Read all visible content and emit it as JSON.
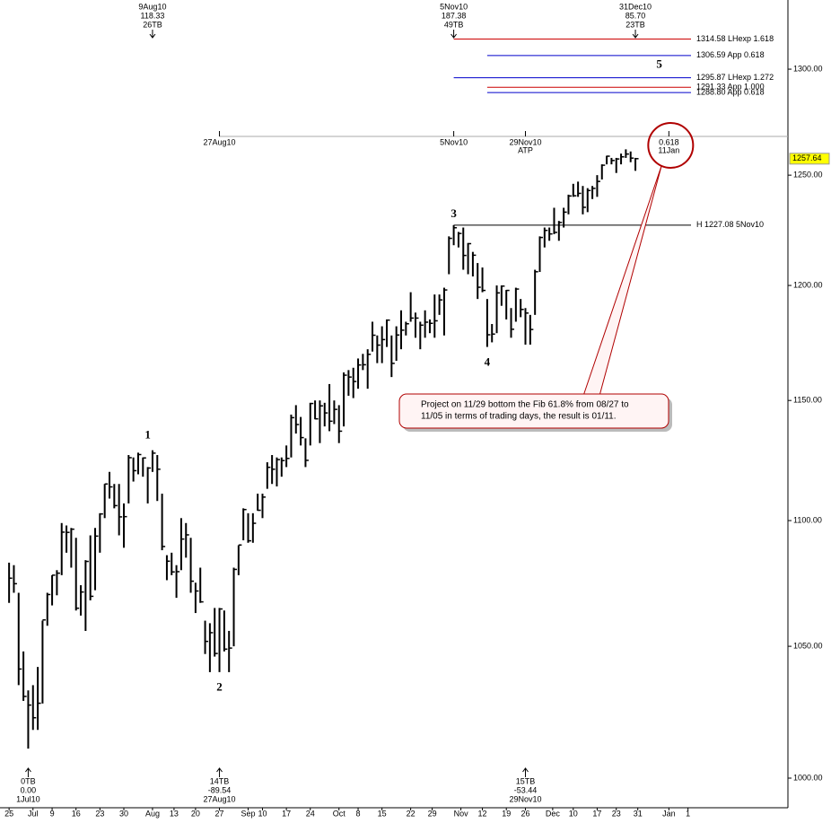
{
  "chart_data": {
    "type": "ohlc",
    "log_scale": true,
    "color": "#000000",
    "categories": [
      null,
      null,
      null,
      null,
      null,
      null,
      null,
      null,
      null,
      null,
      null,
      null,
      null,
      null,
      null,
      null,
      null,
      null,
      null,
      null,
      null,
      null,
      null,
      null,
      null,
      null,
      null,
      null,
      null,
      null,
      null,
      null,
      null,
      null,
      null,
      null,
      null,
      null,
      null,
      null,
      null,
      null,
      null,
      null,
      null,
      null,
      null,
      null,
      null,
      null,
      null,
      null,
      null,
      null,
      null,
      null,
      null,
      null,
      null,
      null,
      null,
      null,
      null,
      null,
      null,
      null,
      null,
      null,
      null,
      null,
      null,
      null,
      null,
      null,
      null,
      null,
      null,
      null,
      null,
      null,
      null,
      null,
      null,
      null,
      null,
      null,
      null,
      null,
      null,
      null,
      null,
      null,
      null,
      null,
      null,
      null,
      null,
      null,
      null,
      null,
      null,
      null,
      null,
      null,
      null,
      null,
      null,
      null,
      null,
      null,
      null,
      null,
      null,
      null,
      null,
      null,
      null,
      null,
      null,
      null,
      null,
      null,
      null,
      null,
      null,
      null,
      null,
      null,
      null,
      null,
      null,
      null
    ],
    "high": [
      1083,
      1082,
      1071,
      1048,
      1033,
      1035,
      1042,
      1060,
      1071,
      1078,
      1080,
      1099,
      1098,
      1097,
      1093,
      1074,
      1084,
      1094,
      1097,
      1103,
      1115,
      1120,
      1115,
      1115,
      1107,
      1127,
      1126,
      1128,
      1126,
      1122,
      1129,
      1127,
      1111,
      1086,
      1087,
      1082,
      1101,
      1099,
      1093,
      1075,
      1081,
      1060,
      1059,
      1065,
      1065,
      1064,
      1056,
      1081,
      1090,
      1105,
      1103,
      1103,
      1111,
      1111,
      1124,
      1127,
      1126,
      1126,
      1131,
      1144,
      1148,
      1143,
      1134,
      1149,
      1150,
      1150,
      1149,
      1157,
      1150,
      1148,
      1162,
      1163,
      1164,
      1168,
      1170,
      1172,
      1184,
      1178,
      1182,
      1185,
      1178,
      1182,
      1189,
      1184,
      1197,
      1188,
      1184,
      1189,
      1185,
      1196,
      1196,
      1199,
      1222,
      1227.08,
      1224,
      1226,
      1219,
      1215,
      1210,
      1208,
      1194,
      1183,
      1200,
      1200,
      1198,
      1190,
      1199,
      1194,
      1190,
      1187,
      1207,
      1222,
      1226,
      1226,
      1235,
      1229,
      1235,
      1241,
      1246,
      1247,
      1245,
      1244,
      1245,
      1250,
      1255,
      1259,
      1258,
      1258,
      1260,
      1262,
      1261,
      1258
    ],
    "low": [
      1067,
      1071,
      1035,
      1029,
      1011,
      1018,
      1018,
      1028,
      1058,
      1066,
      1070,
      1078,
      1087,
      1081,
      1064,
      1062,
      1056,
      1068,
      1072,
      1087,
      1101,
      1109,
      1105,
      1094,
      1089,
      1107,
      1116,
      1119,
      1118,
      1107,
      1120,
      1108,
      1088,
      1076,
      1078,
      1069,
      1080,
      1085,
      1071,
      1063,
      1067,
      1047,
      1040,
      1046,
      1040,
      1048,
      1040,
      1050,
      1078,
      1092,
      1091,
      1091,
      1104,
      1101,
      1113,
      1115,
      1114,
      1118,
      1122,
      1126,
      1136,
      1131,
      1122,
      1131,
      1142,
      1132,
      1139,
      1137,
      1140,
      1132,
      1139,
      1152,
      1151,
      1155,
      1163,
      1155,
      1171,
      1166,
      1166,
      1173,
      1160,
      1167,
      1172,
      1178,
      1184,
      1177,
      1172,
      1177,
      1179,
      1177,
      1187,
      1178,
      1205,
      1218,
      1217,
      1207,
      1205,
      1204,
      1194,
      1197,
      1173,
      1175,
      1179,
      1191,
      1185,
      1177,
      1184,
      1186,
      1174,
      1174,
      1187,
      1206,
      1217,
      1220,
      1223,
      1220,
      1226,
      1232,
      1240,
      1240,
      1232,
      1233,
      1239,
      1240,
      1248,
      1255,
      1255,
      1251,
      1255,
      1258,
      1256,
      1252
    ],
    "close": [
      1076.8,
      1074.6,
      1041.2,
      1030.7,
      1027.4,
      1022.6,
      1028.1,
      1060.3,
      1070.3,
      1078,
      1078.8,
      1095.3,
      1095.2,
      1096.5,
      1064.9,
      1071.3,
      1083.5,
      1069.6,
      1093.7,
      1102.7,
      1115,
      1113.8,
      1106.1,
      1101.5,
      1101.6,
      1125.9,
      1120.5,
      1127.2,
      1125.8,
      1121.6,
      1127.8,
      1121.1,
      1089.5,
      1083.6,
      1079.3,
      1079.4,
      1092.5,
      1094.2,
      1075.6,
      1071.7,
      1067.4,
      1051.9,
      1055.3,
      1047.2,
      1064.6,
      1048.9,
      1049.3,
      1080.3,
      1090.1,
      1104.5,
      1091.8,
      1098.9,
      1104.2,
      1109.6,
      1121.9,
      1121.1,
      1125.1,
      1124.7,
      1125.6,
      1142.7,
      1139.8,
      1134.3,
      1124.8,
      1148.7,
      1142.2,
      1147.7,
      1144.7,
      1141.2,
      1146.2,
      1137,
      1160.8,
      1160,
      1158.1,
      1165.2,
      1165.3,
      1169.8,
      1178.1,
      1173.8,
      1176.2,
      1184.7,
      1165.9,
      1178.2,
      1180.3,
      1183.1,
      1185.6,
      1185.6,
      1182.5,
      1183.8,
      1183.3,
      1184.4,
      1193.6,
      1198,
      1221.1,
      1225.9,
      1223.3,
      1213.4,
      1218.7,
      1213.5,
      1199.2,
      1197.8,
      1178.3,
      1178.6,
      1196.7,
      1199.7,
      1197.8,
      1180.7,
      1198.4,
      1189.4,
      1187.8,
      1180.6,
      1206.1,
      1221.5,
      1224.7,
      1223.1,
      1223.8,
      1228.3,
      1233,
      1240.4,
      1240.5,
      1241.6,
      1235.2,
      1242.9,
      1243.9,
      1247.1,
      1254.6,
      1258.8,
      1256.8,
      1257.5,
      1258.5,
      1259.8,
      1257.9,
      1257.64
    ],
    "xlim": [
      -1.9,
      162.9
    ],
    "xticks": [
      {
        "value": 0,
        "label": "25"
      },
      {
        "value": 5,
        "label": "Jul"
      },
      {
        "value": 9,
        "label": "9"
      },
      {
        "value": 14,
        "label": "16"
      },
      {
        "value": 19,
        "label": "23"
      },
      {
        "value": 24,
        "label": "30"
      },
      {
        "value": 30,
        "label": "Aug"
      },
      {
        "value": 34.5,
        "label": "13"
      },
      {
        "value": 39,
        "label": "20"
      },
      {
        "value": 44,
        "label": "27"
      },
      {
        "value": 50,
        "label": "Sep"
      },
      {
        "value": 53,
        "label": "10"
      },
      {
        "value": 58,
        "label": "17"
      },
      {
        "value": 63,
        "label": "24"
      },
      {
        "value": 69,
        "label": "Oct"
      },
      {
        "value": 73,
        "label": "8"
      },
      {
        "value": 78,
        "label": "15"
      },
      {
        "value": 84,
        "label": "22"
      },
      {
        "value": 88.5,
        "label": "29"
      },
      {
        "value": 94.5,
        "label": "Nov"
      },
      {
        "value": 99,
        "label": "12"
      },
      {
        "value": 104,
        "label": "19"
      },
      {
        "value": 108,
        "label": "26"
      },
      {
        "value": 113.7,
        "label": "Dec"
      },
      {
        "value": 118,
        "label": "10"
      },
      {
        "value": 123,
        "label": "17"
      },
      {
        "value": 127,
        "label": "23"
      },
      {
        "value": 131.5,
        "label": "31"
      },
      {
        "value": 138,
        "label": "Jan"
      },
      {
        "value": 142,
        "label": "1"
      }
    ],
    "ylim": [
      989.1,
      1333.7
    ],
    "yticks": [
      {
        "value": 1000,
        "label": "1000.00"
      },
      {
        "value": 1050,
        "label": "1050.00"
      },
      {
        "value": 1100,
        "label": "1100.00"
      },
      {
        "value": 1150,
        "label": "1150.00"
      },
      {
        "value": 1200,
        "label": "1200.00"
      },
      {
        "value": 1250,
        "label": "1250.00"
      },
      {
        "value": 1300,
        "label": "1300.00"
      }
    ],
    "last_price": 1257.64,
    "top_markers": [
      {
        "x": 30,
        "lines": [
          "9Aug10",
          "118.33",
          "26TB"
        ]
      },
      {
        "x": 93,
        "lines": [
          "5Nov10",
          "187.38",
          "49TB"
        ]
      },
      {
        "x": 131,
        "lines": [
          "31Dec10",
          "85.70",
          "23TB"
        ]
      }
    ],
    "bottom_markers": [
      {
        "x": 4,
        "lines": [
          "0TB",
          "0.00",
          "1Jul10"
        ]
      },
      {
        "x": 44,
        "lines": [
          "14TB",
          "-89.54",
          "27Aug10"
        ]
      },
      {
        "x": 108,
        "lines": [
          "15TB",
          "-53.44",
          "29Nov10"
        ]
      }
    ],
    "timeline": [
      {
        "x": 44,
        "lines": [
          "27Aug10"
        ]
      },
      {
        "x": 93,
        "lines": [
          "5Nov10"
        ]
      },
      {
        "x": 108,
        "lines": [
          "29Nov10",
          "ATP"
        ]
      },
      {
        "x": 138,
        "lines": [
          "0.618",
          "11Jan"
        ]
      }
    ],
    "levels": [
      {
        "value": 1314.58,
        "label": "1314.58 LHexp 1.618",
        "color": "#cc0000",
        "start": 93
      },
      {
        "value": 1306.59,
        "label": "1306.59 App 0.618",
        "color": "#0000cc",
        "start": 100
      },
      {
        "value": 1295.87,
        "label": "1295.87 LHexp 1.272",
        "color": "#0000cc",
        "start": 93
      },
      {
        "value": 1291.33,
        "label": "1291.33 App 1.000",
        "color": "#cc0000",
        "start": 100
      },
      {
        "value": 1288.8,
        "label": "1288.80 App 0.618",
        "color": "#0000cc",
        "start": 100
      },
      {
        "value": 1227.08,
        "label": "H 1227.08 5Nov10",
        "color": "#000000",
        "start": 93
      }
    ],
    "waves": [
      {
        "label": "1",
        "x": 29,
        "y": 1135
      },
      {
        "label": "2",
        "x": 44,
        "y": 1034
      },
      {
        "label": "3",
        "x": 93,
        "y": 1232
      },
      {
        "label": "4",
        "x": 100,
        "y": 1166
      },
      {
        "label": "5",
        "x": 136,
        "y": 1302
      }
    ],
    "wave_color": "#008000",
    "callout": [
      "Project on 11/29 bottom the Fib 61.8% from 08/27 to",
      "11/05 in terms of trading days, the result is 01/11."
    ]
  }
}
